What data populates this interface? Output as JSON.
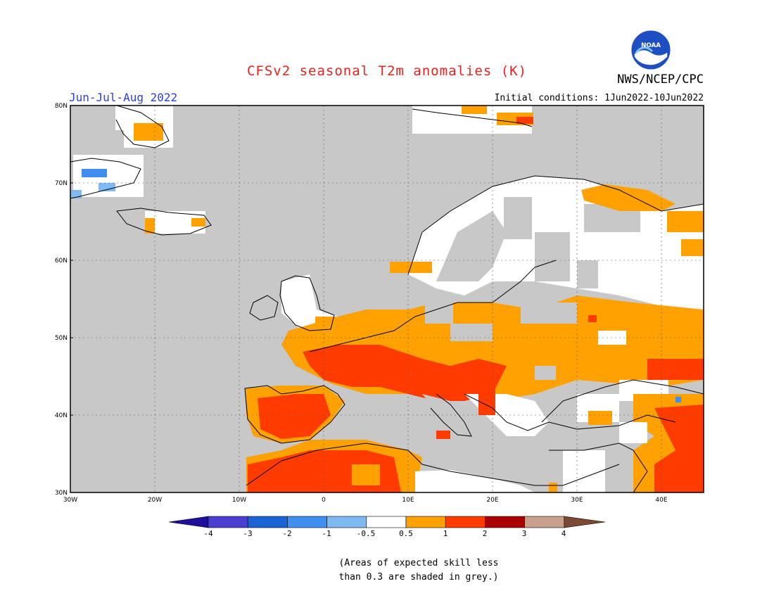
{
  "title": "CFSv2 seasonal T2m anomalies (K)",
  "period": "Jun-Jul-Aug 2022",
  "initial_conditions": "Initial conditions: 1Jun2022-10Jun2022",
  "agency": "NWS/NCEP/CPC",
  "logo_text": "NOAA",
  "map": {
    "lon_range": [
      -30,
      45
    ],
    "lat_range": [
      30,
      80
    ],
    "lat_ticks": [
      "30N",
      "40N",
      "50N",
      "60N",
      "70N",
      "80N"
    ],
    "lon_ticks": [
      "30W",
      "20W",
      "10W",
      "0",
      "10E",
      "20E",
      "30E",
      "40E"
    ],
    "grid": true,
    "skill_mask_color": "#c8c8c8"
  },
  "colorbar": {
    "labels": [
      "-4",
      "-3",
      "-2",
      "-1",
      "-0.5",
      "0.5",
      "1",
      "2",
      "3",
      "4"
    ],
    "colors": [
      "#1e0f9c",
      "#4a3fd0",
      "#1c63d6",
      "#3f8ef0",
      "#7fb9f2",
      "#ffffff",
      "#ffa100",
      "#ff3b00",
      "#a80000",
      "#c9a08a",
      "#7b4a35"
    ]
  },
  "note_line1": "(Areas of expected skill less",
  "note_line2": "than 0.3 are shaded in grey.)",
  "colors": {
    "warm1": "#ffa100",
    "warm2": "#ff3b00",
    "warm3": "#a80000",
    "cool1": "#7fb9f2",
    "cool2": "#3f8ef0",
    "neutral": "#ffffff",
    "grey": "#c8c8c8"
  }
}
